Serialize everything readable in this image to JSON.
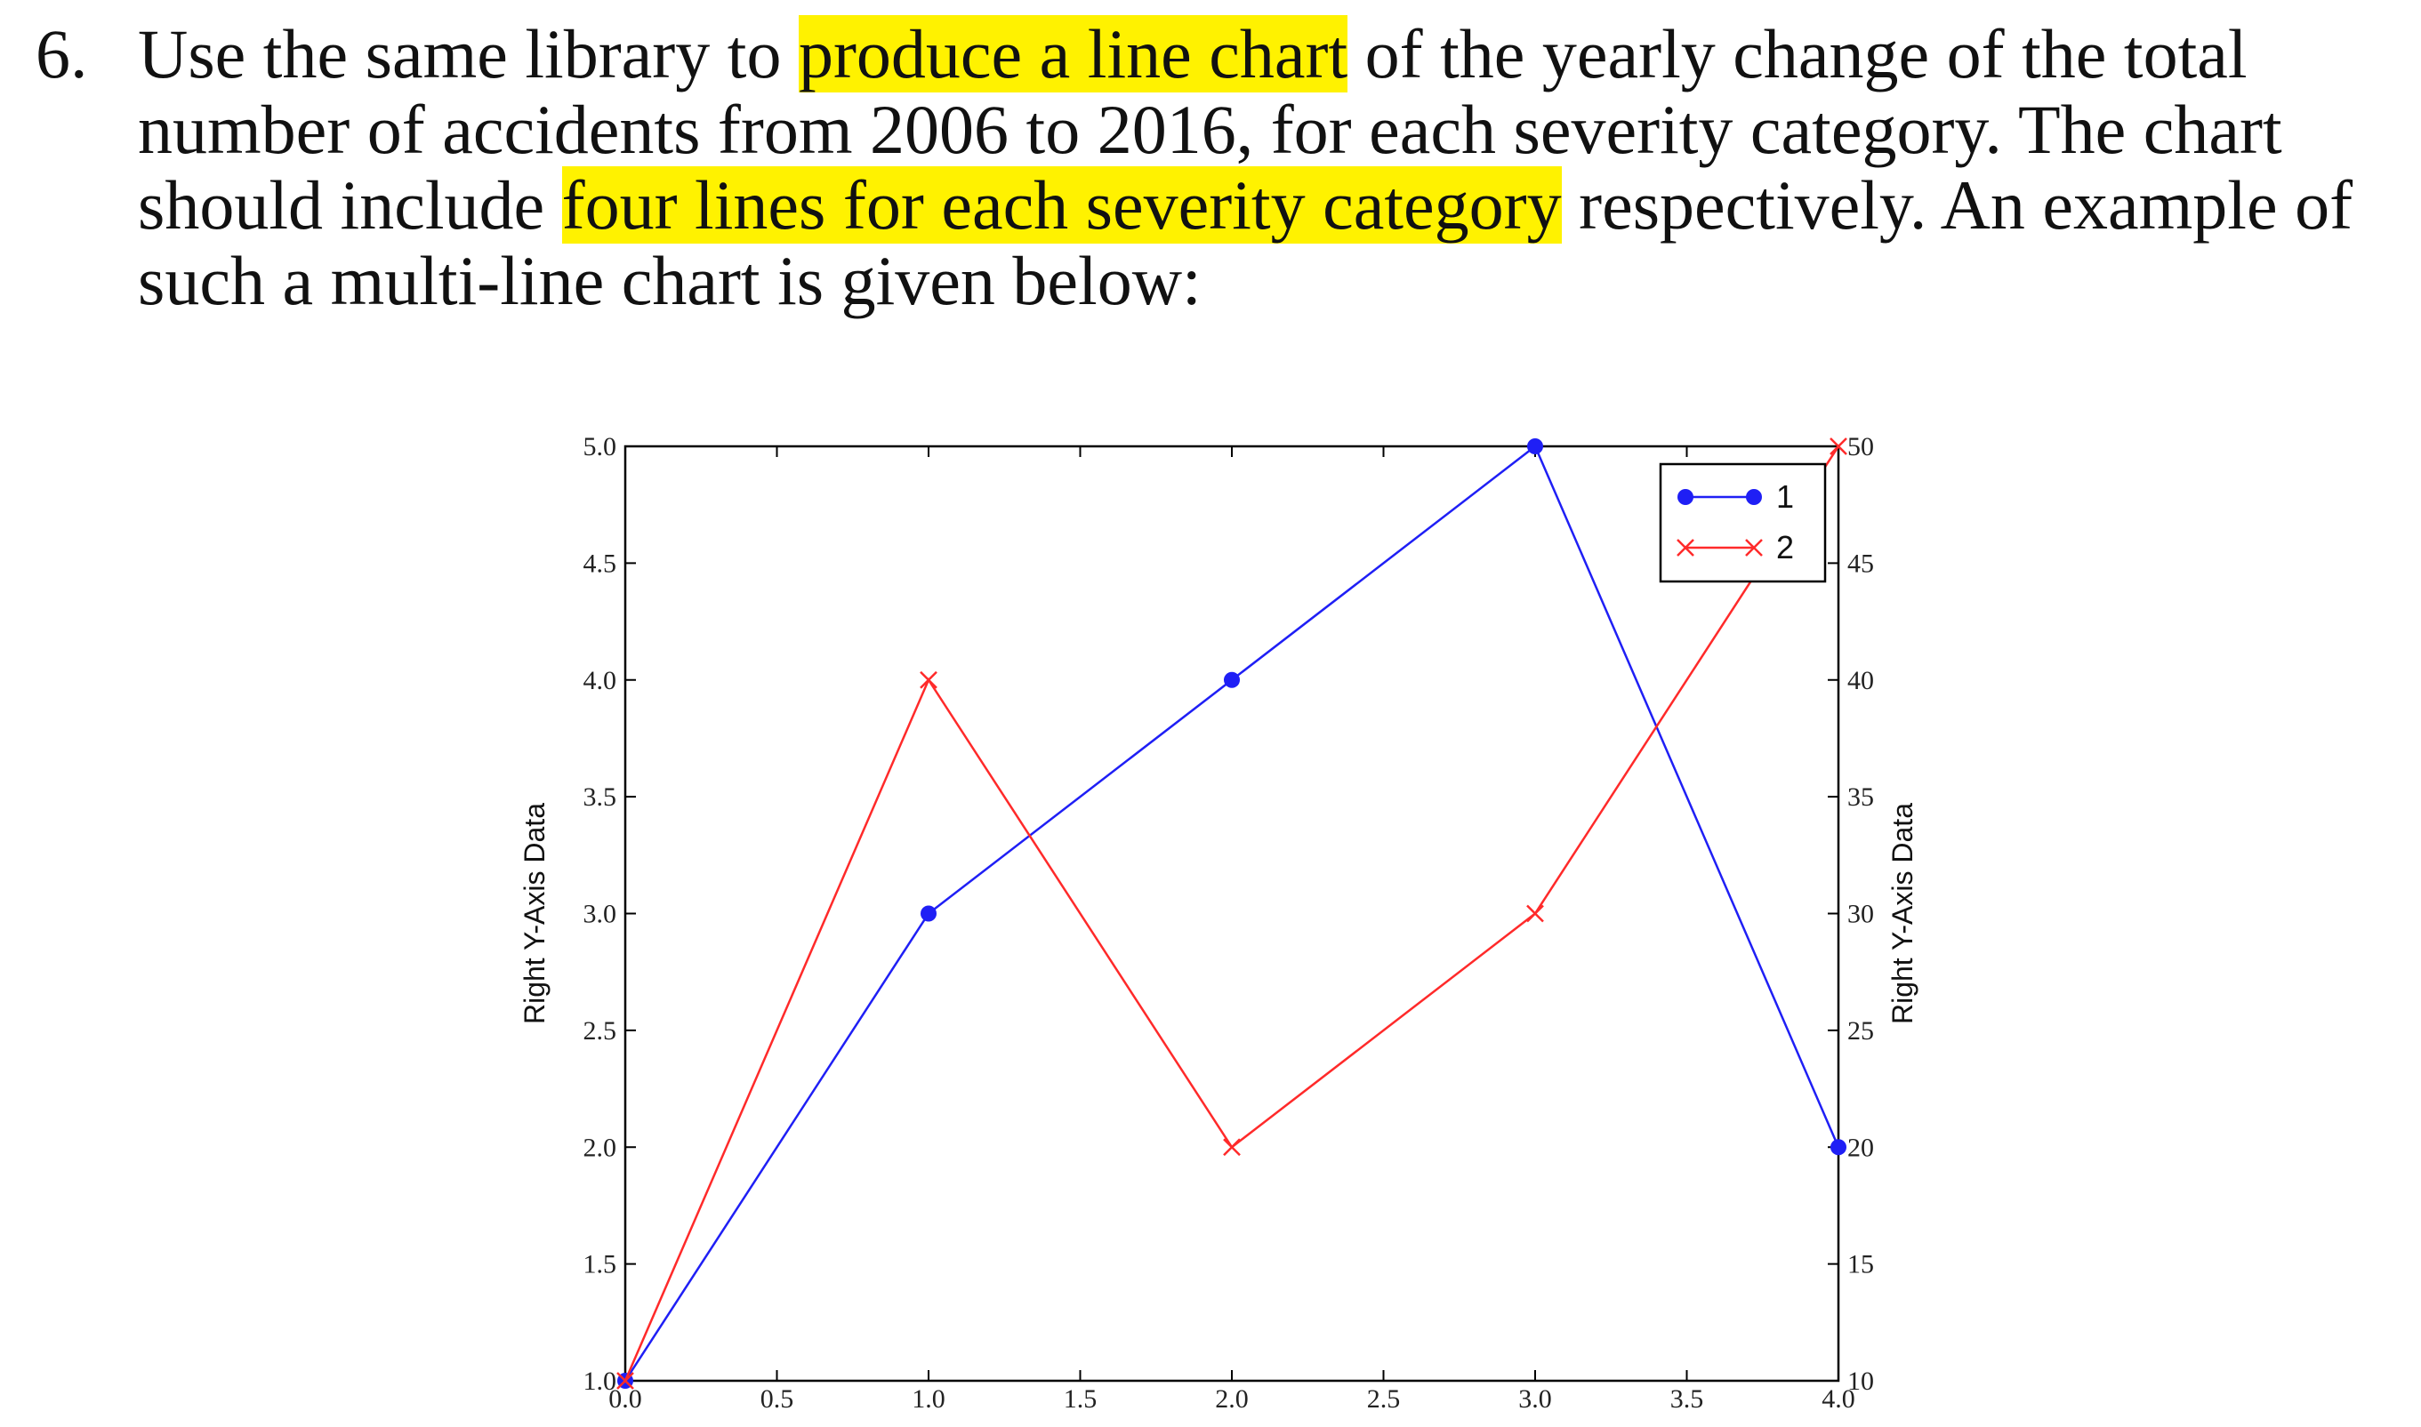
{
  "question": {
    "number": "6.",
    "lines": [
      [
        {
          "text": "Use the same library to ",
          "hl": false
        },
        {
          "text": "produce a line chart",
          "hl": true
        },
        {
          "text": " of the yearly change of the total",
          "hl": false
        }
      ],
      [
        {
          "text": "number of accidents from 2006 to 2016, for each severity category. The chart",
          "hl": false
        }
      ],
      [
        {
          "text": "should include ",
          "hl": false
        },
        {
          "text": "four lines for each severity category",
          "hl": true
        },
        {
          "text": " respectively. An example of",
          "hl": false
        }
      ],
      [
        {
          "text": "such a multi-line chart is given below:",
          "hl": false
        }
      ]
    ],
    "highlight_color": "#fff200"
  },
  "chart_data": {
    "type": "line",
    "title": "",
    "xlabel": "",
    "ylabel": "Right Y-Axis Data",
    "y2label": "Right Y-Axis Data",
    "xlim": [
      0.0,
      4.0
    ],
    "ylim": [
      1.0,
      5.0
    ],
    "y2lim": [
      10,
      50
    ],
    "x_ticks": [
      "0.0",
      "0.5",
      "1.0",
      "1.5",
      "2.0",
      "2.5",
      "3.0",
      "3.5",
      "4.0"
    ],
    "y_ticks": [
      "1.0",
      "1.5",
      "2.0",
      "2.5",
      "3.0",
      "3.5",
      "4.0",
      "4.5",
      "5.0"
    ],
    "y2_ticks": [
      "10",
      "15",
      "20",
      "25",
      "30",
      "35",
      "40",
      "45",
      "50"
    ],
    "grid": false,
    "legend_position": "top-right",
    "series": [
      {
        "name": "1",
        "axis": "left",
        "marker": "circle",
        "color": "#1f1ff5",
        "x": [
          0,
          1,
          2,
          3,
          4
        ],
        "values": [
          1,
          3,
          4,
          5,
          2
        ]
      },
      {
        "name": "2",
        "axis": "right",
        "marker": "x",
        "color": "#ff2a2a",
        "x": [
          0,
          1,
          2,
          3,
          4
        ],
        "values": [
          10,
          40,
          20,
          30,
          50
        ]
      }
    ]
  }
}
